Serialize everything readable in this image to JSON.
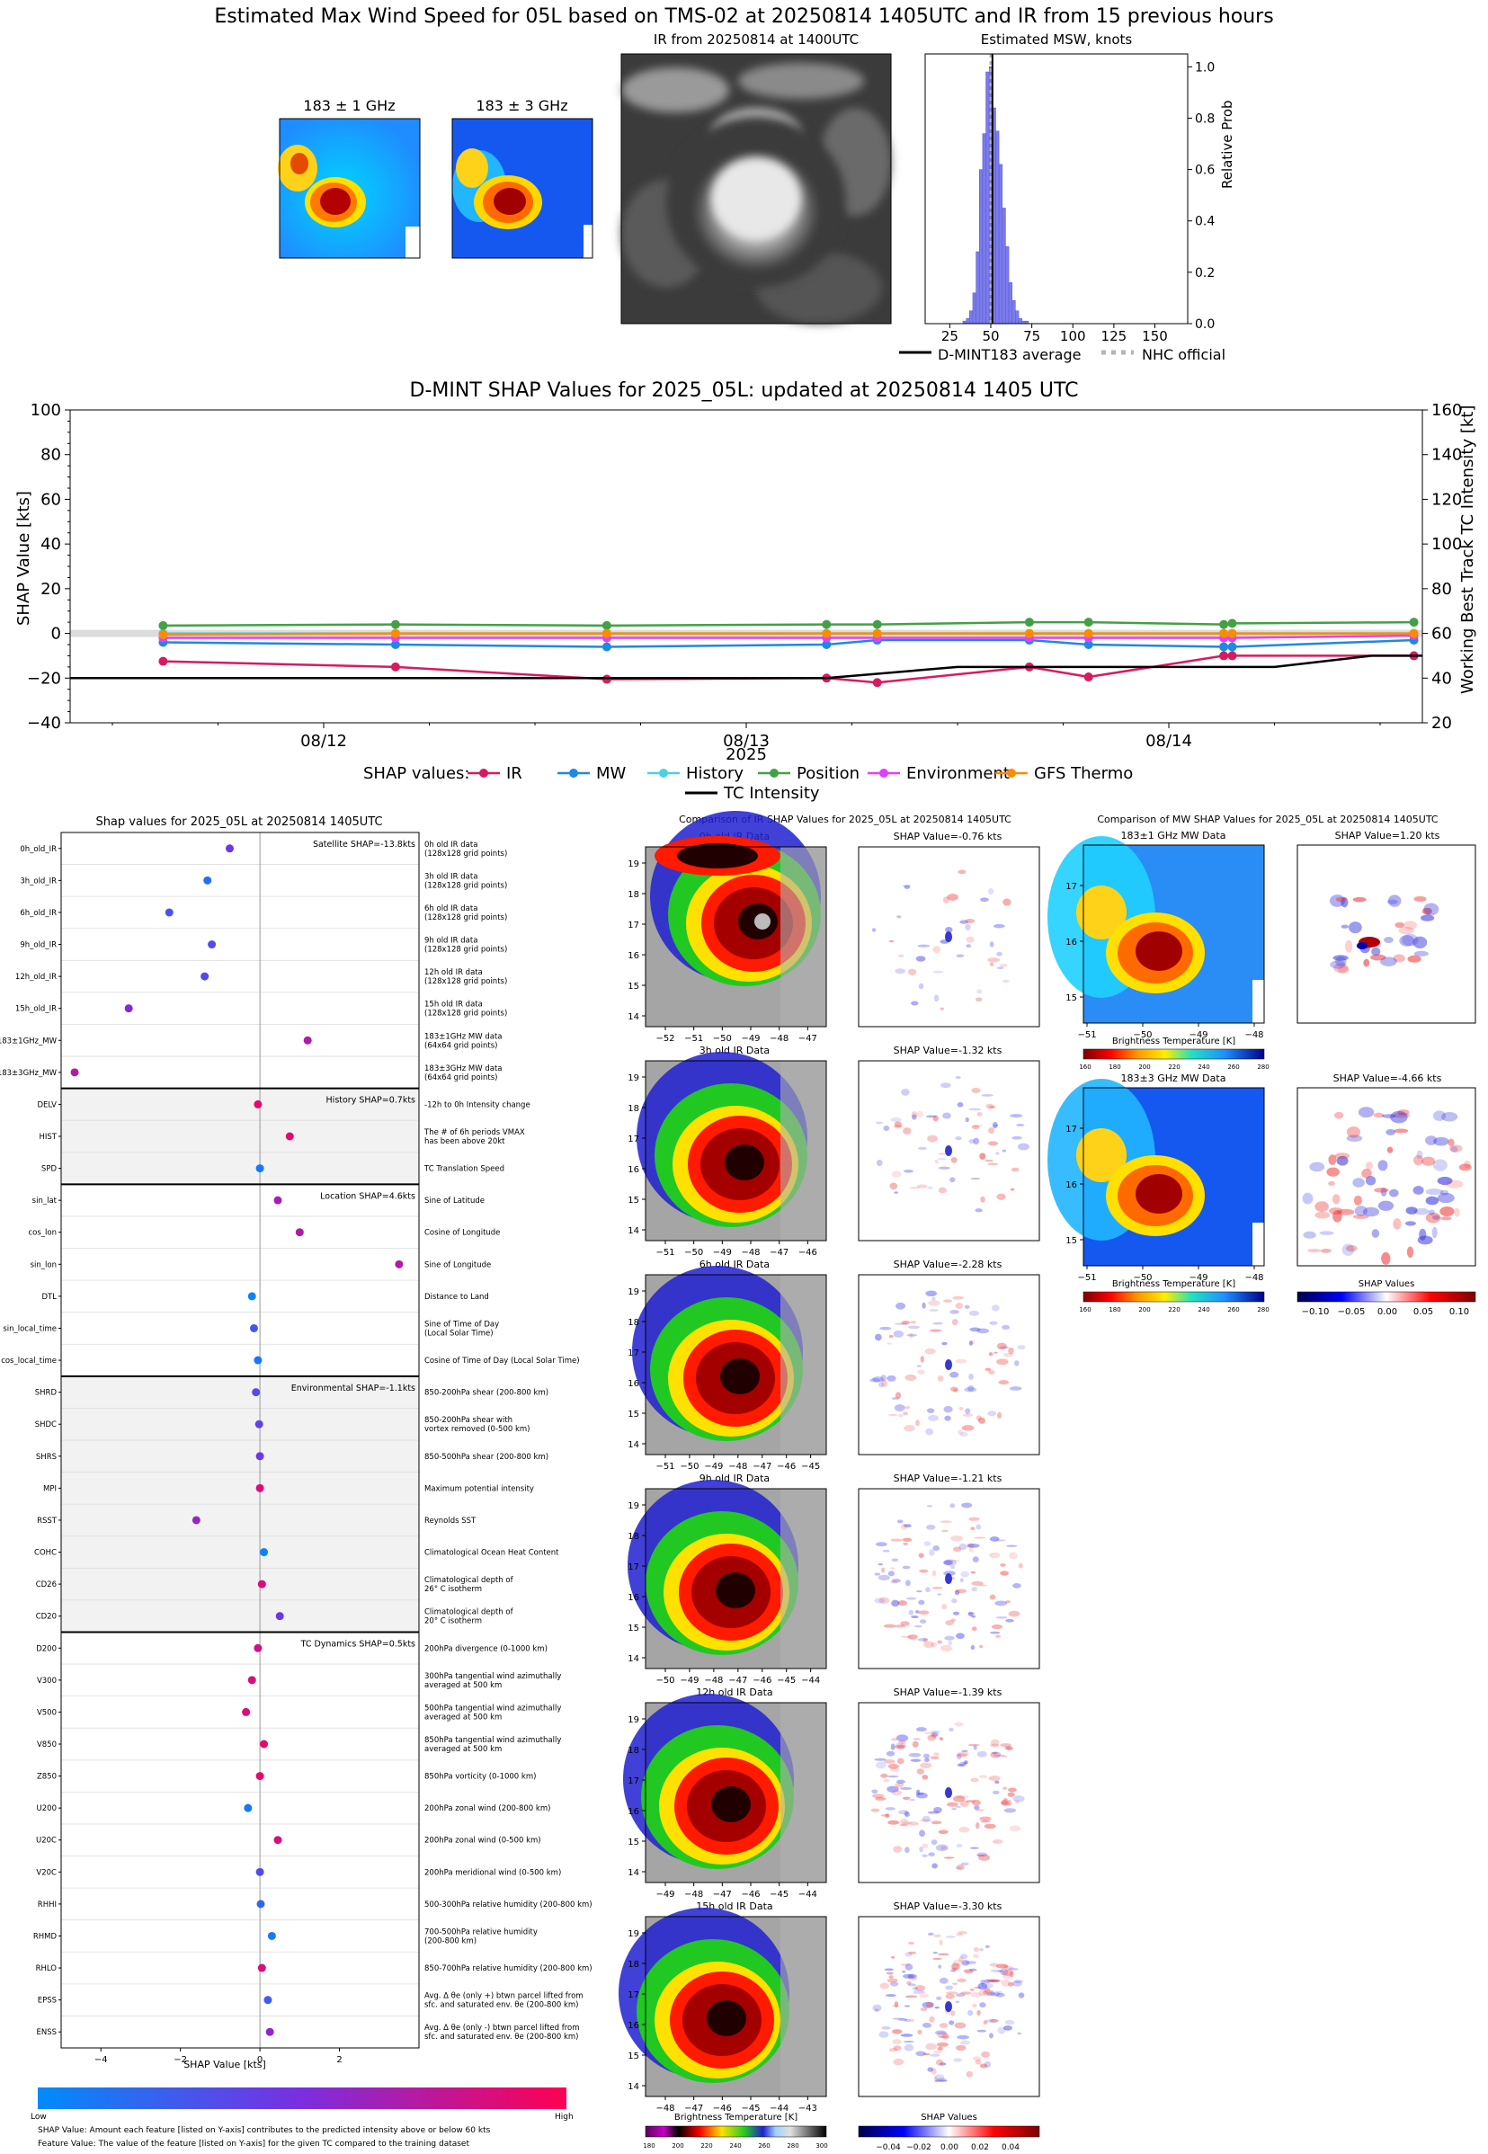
{
  "header": {
    "title": "Estimated Max Wind Speed for 05L based on TMS-02 at 20250814 1405UTC and IR from 15 previous hours",
    "mw1_title": "183 ± 1 GHz",
    "mw3_title": "183 ± 3 GHz",
    "ir_title": "IR from 20250814 at 1400UTC",
    "hist_title": "Estimated MSW, knots",
    "hist_ylabel": "Relative Prob",
    "legend_dmint": "D-MINT183 average",
    "legend_nhc": "NHC official"
  },
  "shap_timeseries": {
    "title": "D-MINT SHAP Values for 2025_05L: updated at 20250814 1405 UTC",
    "ylabel_left": "SHAP Value [kts]",
    "ylabel_right": "Working Best Track TC Intensity [kt]",
    "xlabel": "2025",
    "legend_prefix": "SHAP values:",
    "legend_tc": "TC Intensity"
  },
  "bar_panel": {
    "title": "Shap values for 2025_05L at 20250814 1405UTC",
    "xlabel": "SHAP Value [kts]",
    "colorbar_low": "Low",
    "colorbar_high": "High",
    "footnote1": "SHAP Value: Amount each feature [listed on Y-axis] contributes to the predicted intensity above or below 60 kts",
    "footnote2": "Feature Value: The value of the feature [listed on Y-axis] for the given TC compared to the training dataset",
    "groups": [
      {
        "label": "Satellite SHAP=-13.8kts",
        "start": 0,
        "end": 8
      },
      {
        "label": "History SHAP=0.7kts",
        "start": 8,
        "end": 11
      },
      {
        "label": "Location SHAP=4.6kts",
        "start": 11,
        "end": 17
      },
      {
        "label": "Environmental SHAP=-1.1kts",
        "start": 17,
        "end": 25
      },
      {
        "label": "TC Dynamics SHAP=0.5kts",
        "start": 25,
        "end": 38
      }
    ]
  },
  "ir_comparison": {
    "title": "Comparison of IR SHAP Values for 2025_05L at 20250814 1405UTC",
    "colorbar_label": "Brightness Temperature [K]",
    "shap_colorbar_label": "SHAP Values",
    "panels": [
      {
        "data_title": "0h old IR Data",
        "shap_title": "SHAP Value=-0.76 kts",
        "xticks": [
          "−52",
          "−51",
          "−50",
          "−49",
          "−48",
          "−47"
        ]
      },
      {
        "data_title": "3h old IR Data",
        "shap_title": "SHAP Value=-1.32 kts",
        "xticks": [
          "−51",
          "−50",
          "−49",
          "−48",
          "−47",
          "−46"
        ]
      },
      {
        "data_title": "6h old IR Data",
        "shap_title": "SHAP Value=-2.28 kts",
        "xticks": [
          "−51",
          "−50",
          "−49",
          "−48",
          "−47",
          "−46",
          "−45"
        ]
      },
      {
        "data_title": "9h old IR Data",
        "shap_title": "SHAP Value=-1.21 kts",
        "xticks": [
          "−50",
          "−49",
          "−48",
          "−47",
          "−46",
          "−45",
          "−44"
        ]
      },
      {
        "data_title": "12h old IR Data",
        "shap_title": "SHAP Value=-1.39 kts",
        "xticks": [
          "−49",
          "−48",
          "−47",
          "−46",
          "−45",
          "−44"
        ]
      },
      {
        "data_title": "15h old IR Data",
        "shap_title": "SHAP Value=-3.30 kts",
        "xticks": [
          "−48",
          "−47",
          "−46",
          "−45",
          "−44",
          "−43"
        ]
      }
    ],
    "yticks": [
      "19",
      "18",
      "17",
      "16",
      "15",
      "14"
    ],
    "bt_ticks": [
      "180",
      "200",
      "220",
      "240",
      "260",
      "280",
      "300"
    ],
    "shap_ticks": [
      "−0.04",
      "−0.02",
      "0.00",
      "0.02",
      "0.04"
    ]
  },
  "mw_comparison": {
    "title": "Comparison of MW SHAP Values for 2025_05L at 20250814 1405UTC",
    "panels": [
      {
        "data_title": "183±1 GHz MW Data",
        "shap_title": "SHAP Value=1.20 kts"
      },
      {
        "data_title": "183±3 GHz MW Data",
        "shap_title": "SHAP Value=-4.66 kts"
      }
    ],
    "xticks": [
      "−51",
      "−50",
      "−49",
      "−48"
    ],
    "yticks": [
      "17",
      "16",
      "15"
    ],
    "colorbar_label": "Brightness Temperature [K]",
    "bt_ticks": [
      "160",
      "180",
      "200",
      "220",
      "240",
      "260",
      "280"
    ],
    "shap_colorbar_label": "SHAP Values",
    "shap_ticks": [
      "−0.10",
      "−0.05",
      "0.00",
      "0.05",
      "0.10"
    ]
  },
  "chart_data": [
    {
      "type": "bar",
      "title": "Estimated MSW, knots",
      "ylabel": "Relative Prob",
      "xlim": [
        10,
        170
      ],
      "ylim": [
        0,
        1.05
      ],
      "xticks": [
        25,
        50,
        75,
        100,
        125,
        150
      ],
      "yticks": [
        0.0,
        0.2,
        0.4,
        0.6,
        0.8,
        1.0
      ],
      "bins": [
        {
          "x": 34,
          "p": 0.01
        },
        {
          "x": 36,
          "p": 0.02
        },
        {
          "x": 38,
          "p": 0.05
        },
        {
          "x": 40,
          "p": 0.12
        },
        {
          "x": 42,
          "p": 0.28
        },
        {
          "x": 44,
          "p": 0.6
        },
        {
          "x": 46,
          "p": 0.74
        },
        {
          "x": 48,
          "p": 0.98
        },
        {
          "x": 50,
          "p": 1.0
        },
        {
          "x": 52,
          "p": 0.84
        },
        {
          "x": 54,
          "p": 0.75
        },
        {
          "x": 56,
          "p": 0.62
        },
        {
          "x": 58,
          "p": 0.45
        },
        {
          "x": 60,
          "p": 0.3
        },
        {
          "x": 62,
          "p": 0.16
        },
        {
          "x": 64,
          "p": 0.09
        },
        {
          "x": 66,
          "p": 0.05
        },
        {
          "x": 68,
          "p": 0.02
        },
        {
          "x": 70,
          "p": 0.01
        },
        {
          "x": 72,
          "p": 0.01
        }
      ],
      "dmint_average": 51,
      "nhc_official": 50
    },
    {
      "type": "line",
      "title": "D-MINT SHAP Values for 2025_05L: updated at 20250814 1405 UTC",
      "xlabel": "2025",
      "ylabel": "SHAP Value [kts]",
      "ylabel_right": "Working Best Track TC Intensity [kt]",
      "xlim": [
        11.4,
        14.6
      ],
      "ylim": [
        -40,
        100
      ],
      "ylim_right": [
        20,
        160
      ],
      "yticks": [
        -40,
        -20,
        0,
        20,
        40,
        60,
        80,
        100
      ],
      "yticks_right": [
        20,
        40,
        60,
        80,
        100,
        120,
        140,
        160
      ],
      "xticks": [
        {
          "v": 12,
          "label": "08/12"
        },
        {
          "v": 13,
          "label": "08/13"
        },
        {
          "v": 14,
          "label": "08/14"
        }
      ],
      "x": [
        11.62,
        12.17,
        12.67,
        13.19,
        13.31,
        13.67,
        13.81,
        14.13,
        14.15,
        14.58
      ],
      "series": [
        {
          "name": "IR",
          "color": "#d81b60",
          "values": [
            -12.5,
            -15,
            -20.5,
            -20,
            -22,
            -15,
            -19.5,
            -10,
            -10,
            -10
          ]
        },
        {
          "name": "MW",
          "color": "#1e88e5",
          "values": [
            -4,
            -5,
            -6,
            -5,
            -3,
            -3,
            -5,
            -6,
            -6,
            -3
          ]
        },
        {
          "name": "History",
          "color": "#4dd0e1",
          "values": [
            0,
            0,
            0,
            0,
            0,
            0,
            0,
            0,
            0,
            0
          ]
        },
        {
          "name": "Position",
          "color": "#43a047",
          "values": [
            3.5,
            4,
            3.5,
            4,
            4,
            5,
            5,
            4,
            4.5,
            5
          ]
        },
        {
          "name": "Environment",
          "color": "#e040fb",
          "values": [
            -2,
            -2,
            -2,
            -2,
            -2,
            -2,
            -2,
            -2,
            -2,
            -1
          ]
        },
        {
          "name": "GFS Thermo",
          "color": "#fb8c00",
          "values": [
            -0.5,
            0,
            0,
            0,
            0,
            0,
            0,
            0,
            0,
            0
          ]
        }
      ],
      "tc_intensity": {
        "name": "TC Intensity",
        "x": [
          11.4,
          12.67,
          13.19,
          13.5,
          14.25,
          14.48,
          14.6
        ],
        "values": [
          40,
          40,
          40,
          45,
          45,
          50,
          50
        ]
      }
    },
    {
      "type": "scatter",
      "title": "Shap values for 2025_05L at 20250814 1405UTC",
      "xlabel": "SHAP Value [kts]",
      "xlim": [
        -5,
        4
      ],
      "xticks": [
        -4,
        -2,
        0,
        2
      ],
      "features": [
        {
          "name": "0h_old_IR",
          "desc": "0h old IR data\n(128x128 grid points)",
          "shap": -0.76,
          "fv": 0.45
        },
        {
          "name": "3h_old_IR",
          "desc": "3h old IR data\n(128x128 grid points)",
          "shap": -1.32,
          "fv": 0.15
        },
        {
          "name": "6h_old_IR",
          "desc": "6h old IR data\n(128x128 grid points)",
          "shap": -2.28,
          "fv": 0.3
        },
        {
          "name": "9h_old_IR",
          "desc": "9h old IR data\n(128x128 grid points)",
          "shap": -1.21,
          "fv": 0.35
        },
        {
          "name": "12h_old_IR",
          "desc": "12h old IR data\n(128x128 grid points)",
          "shap": -1.39,
          "fv": 0.35
        },
        {
          "name": "15h_old_IR",
          "desc": "15h old IR data\n(128x128 grid points)",
          "shap": -3.3,
          "fv": 0.55
        },
        {
          "name": "183±1GHz_MW",
          "desc": "183±1GHz MW data\n(64x64 grid points)",
          "shap": 1.2,
          "fv": 0.7
        },
        {
          "name": "183±3GHz_MW",
          "desc": "183±3GHz MW data\n(64x64 grid points)",
          "shap": -4.66,
          "fv": 0.72
        },
        {
          "name": "DELV",
          "desc": "-12h to 0h Intensity change",
          "shap": -0.05,
          "fv": 0.9
        },
        {
          "name": "HIST",
          "desc": "The # of 6h periods VMAX\nhas been above 20kt",
          "shap": 0.75,
          "fv": 0.9
        },
        {
          "name": "SPD",
          "desc": "TC Translation Speed",
          "shap": 0.0,
          "fv": 0.1
        },
        {
          "name": "sin_lat",
          "desc": "Sine of Latitude",
          "shap": 0.45,
          "fv": 0.65
        },
        {
          "name": "cos_lon",
          "desc": "Cosine of Longitude",
          "shap": 1.0,
          "fv": 0.7
        },
        {
          "name": "sin_lon",
          "desc": "Sine of Longitude",
          "shap": 3.5,
          "fv": 0.7
        },
        {
          "name": "DTL",
          "desc": "Distance to Land",
          "shap": -0.2,
          "fv": 0.05
        },
        {
          "name": "sin_local_time",
          "desc": "Sine of Time of Day\n(Local Solar Time)",
          "shap": -0.15,
          "fv": 0.3
        },
        {
          "name": "cos_local_time",
          "desc": "Cosine of Time of Day (Local Solar Time)",
          "shap": -0.05,
          "fv": 0.1
        },
        {
          "name": "SHRD",
          "desc": "850-200hPa shear (200-800 km)",
          "shap": -0.1,
          "fv": 0.35
        },
        {
          "name": "SHDC",
          "desc": "850-200hPa shear with\nvortex removed (0-500 km)",
          "shap": -0.02,
          "fv": 0.4
        },
        {
          "name": "SHRS",
          "desc": "850-500hPa shear (200-800 km)",
          "shap": 0.0,
          "fv": 0.45
        },
        {
          "name": "MPI",
          "desc": "Maximum potential intensity",
          "shap": 0.0,
          "fv": 0.85
        },
        {
          "name": "RSST",
          "desc": "Reynolds SST",
          "shap": -1.6,
          "fv": 0.6
        },
        {
          "name": "COHC",
          "desc": "Climatological Ocean Heat Content",
          "shap": 0.1,
          "fv": 0.05
        },
        {
          "name": "CD26",
          "desc": "Climatological depth of\n26° C isotherm",
          "shap": 0.05,
          "fv": 0.85
        },
        {
          "name": "CD20",
          "desc": "Climatological depth of\n20° C isotherm",
          "shap": 0.5,
          "fv": 0.45
        },
        {
          "name": "D200",
          "desc": "200hPa divergence (0-1000 km)",
          "shap": -0.05,
          "fv": 0.8
        },
        {
          "name": "V300",
          "desc": "300hPa tangential wind azimuthally\naveraged at 500 km",
          "shap": -0.2,
          "fv": 0.85
        },
        {
          "name": "V500",
          "desc": "500hPa tangential wind azimuthally\naveraged at 500 km",
          "shap": -0.35,
          "fv": 0.85
        },
        {
          "name": "V850",
          "desc": "850hPa tangential wind azimuthally\naveraged at 500 km",
          "shap": 0.1,
          "fv": 0.9
        },
        {
          "name": "Z850",
          "desc": "850hPa vorticity (0-1000 km)",
          "shap": 0.0,
          "fv": 0.9
        },
        {
          "name": "U200",
          "desc": "200hPa zonal wind (200-800 km)",
          "shap": -0.3,
          "fv": 0.1
        },
        {
          "name": "U20C",
          "desc": "200hPa zonal wind (0-500 km)",
          "shap": 0.45,
          "fv": 0.85
        },
        {
          "name": "V20C",
          "desc": "200hPa meridional wind (0-500 km)",
          "shap": 0.0,
          "fv": 0.35
        },
        {
          "name": "RHHI",
          "desc": "500-300hPa relative humidity (200-800 km)",
          "shap": 0.02,
          "fv": 0.2
        },
        {
          "name": "RHMD",
          "desc": "700-500hPa relative humidity\n(200-800 km)",
          "shap": 0.3,
          "fv": 0.1
        },
        {
          "name": "RHLO",
          "desc": "850-700hPa relative humidity (200-800 km)",
          "shap": 0.05,
          "fv": 0.85
        },
        {
          "name": "EPSS",
          "desc": "Avg. Δ θe (only +) btwn parcel lifted from\nsfc. and saturated env. θe (200-800 km)",
          "shap": 0.2,
          "fv": 0.25
        },
        {
          "name": "ENSS",
          "desc": "Avg. Δ θe (only -) btwn parcel lifted from\nsfc. and saturated env. θe (200-800 km)",
          "shap": 0.25,
          "fv": 0.6
        }
      ]
    }
  ]
}
